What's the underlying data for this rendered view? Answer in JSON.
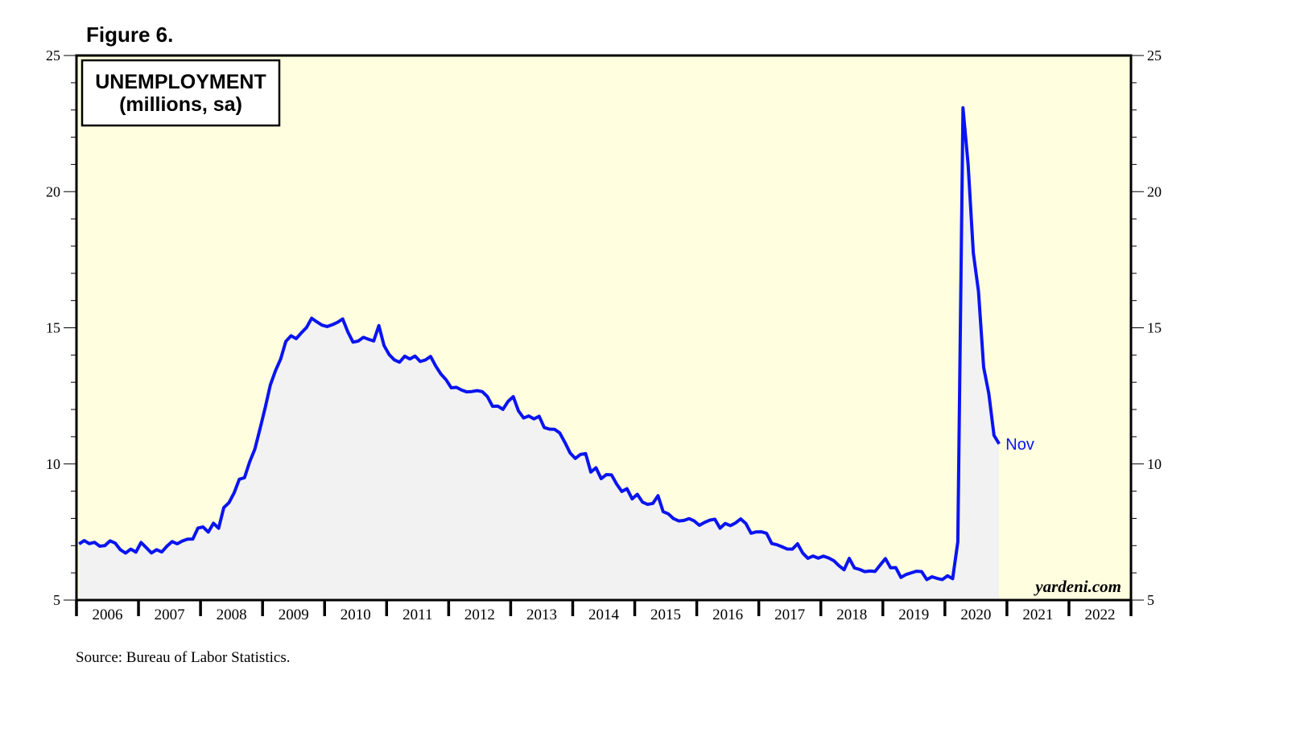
{
  "chart_data": {
    "type": "line",
    "figure_label": "Figure 6.",
    "title": "UNEMPLOYMENT",
    "subtitle": "(millions, sa)",
    "annotation": "Nov",
    "watermark": "yardeni.com",
    "source": "Source: Bureau of Labor Statistics.",
    "xlim": [
      2006,
      2023
    ],
    "xticks": [
      2006,
      2007,
      2008,
      2009,
      2010,
      2011,
      2012,
      2013,
      2014,
      2015,
      2016,
      2017,
      2018,
      2019,
      2020,
      2021,
      2022
    ],
    "ylim": [
      5,
      25
    ],
    "yticks": [
      5,
      10,
      15,
      20,
      25
    ],
    "y_minor_ticks": [
      6,
      7,
      8,
      9,
      11,
      12,
      13,
      14,
      16,
      17,
      18,
      19,
      21,
      22,
      23,
      24
    ],
    "background": "#ffffe0",
    "area_color": "#f2f2f2",
    "x": [
      "2006-01",
      "2006-02",
      "2006-03",
      "2006-04",
      "2006-05",
      "2006-06",
      "2006-07",
      "2006-08",
      "2006-09",
      "2006-10",
      "2006-11",
      "2006-12",
      "2007-01",
      "2007-02",
      "2007-03",
      "2007-04",
      "2007-05",
      "2007-06",
      "2007-07",
      "2007-08",
      "2007-09",
      "2007-10",
      "2007-11",
      "2007-12",
      "2008-01",
      "2008-02",
      "2008-03",
      "2008-04",
      "2008-05",
      "2008-06",
      "2008-07",
      "2008-08",
      "2008-09",
      "2008-10",
      "2008-11",
      "2008-12",
      "2009-01",
      "2009-02",
      "2009-03",
      "2009-04",
      "2009-05",
      "2009-06",
      "2009-07",
      "2009-08",
      "2009-09",
      "2009-10",
      "2009-11",
      "2009-12",
      "2010-01",
      "2010-02",
      "2010-03",
      "2010-04",
      "2010-05",
      "2010-06",
      "2010-07",
      "2010-08",
      "2010-09",
      "2010-10",
      "2010-11",
      "2010-12",
      "2011-01",
      "2011-02",
      "2011-03",
      "2011-04",
      "2011-05",
      "2011-06",
      "2011-07",
      "2011-08",
      "2011-09",
      "2011-10",
      "2011-11",
      "2011-12",
      "2012-01",
      "2012-02",
      "2012-03",
      "2012-04",
      "2012-05",
      "2012-06",
      "2012-07",
      "2012-08",
      "2012-09",
      "2012-10",
      "2012-11",
      "2012-12",
      "2013-01",
      "2013-02",
      "2013-03",
      "2013-04",
      "2013-05",
      "2013-06",
      "2013-07",
      "2013-08",
      "2013-09",
      "2013-10",
      "2013-11",
      "2013-12",
      "2014-01",
      "2014-02",
      "2014-03",
      "2014-04",
      "2014-05",
      "2014-06",
      "2014-07",
      "2014-08",
      "2014-09",
      "2014-10",
      "2014-11",
      "2014-12",
      "2015-01",
      "2015-02",
      "2015-03",
      "2015-04",
      "2015-05",
      "2015-06",
      "2015-07",
      "2015-08",
      "2015-09",
      "2015-10",
      "2015-11",
      "2015-12",
      "2016-01",
      "2016-02",
      "2016-03",
      "2016-04",
      "2016-05",
      "2016-06",
      "2016-07",
      "2016-08",
      "2016-09",
      "2016-10",
      "2016-11",
      "2016-12",
      "2017-01",
      "2017-02",
      "2017-03",
      "2017-04",
      "2017-05",
      "2017-06",
      "2017-07",
      "2017-08",
      "2017-09",
      "2017-10",
      "2017-11",
      "2017-12",
      "2018-01",
      "2018-02",
      "2018-03",
      "2018-04",
      "2018-05",
      "2018-06",
      "2018-07",
      "2018-08",
      "2018-09",
      "2018-10",
      "2018-11",
      "2018-12",
      "2019-01",
      "2019-02",
      "2019-03",
      "2019-04",
      "2019-05",
      "2019-06",
      "2019-07",
      "2019-08",
      "2019-09",
      "2019-10",
      "2019-11",
      "2019-12",
      "2020-01",
      "2020-02",
      "2020-03",
      "2020-04",
      "2020-05",
      "2020-06",
      "2020-07",
      "2020-08",
      "2020-09",
      "2020-10",
      "2020-11"
    ],
    "series": [
      {
        "name": "UNEMPLOYMENT",
        "color": "#0a14f0",
        "values": [
          7.064,
          7.184,
          7.072,
          7.12,
          6.98,
          7.001,
          7.175,
          7.091,
          6.847,
          6.727,
          6.872,
          6.762,
          7.116,
          6.927,
          6.731,
          6.85,
          6.766,
          6.979,
          7.149,
          7.067,
          7.17,
          7.237,
          7.24,
          7.645,
          7.685,
          7.497,
          7.822,
          7.637,
          8.395,
          8.575,
          8.937,
          9.438,
          9.494,
          10.074,
          10.538,
          11.286,
          12.058,
          12.898,
          13.426,
          13.853,
          14.499,
          14.707,
          14.601,
          14.814,
          15.009,
          15.352,
          15.219,
          15.098,
          15.046,
          15.113,
          15.202,
          15.325,
          14.849,
          14.474,
          14.512,
          14.648,
          14.579,
          14.516,
          15.081,
          14.348,
          14.013,
          13.82,
          13.737,
          13.957,
          13.855,
          13.962,
          13.763,
          13.818,
          13.948,
          13.594,
          13.302,
          13.093,
          12.797,
          12.813,
          12.713,
          12.646,
          12.66,
          12.692,
          12.656,
          12.471,
          12.115,
          12.124,
          12.005,
          12.298,
          12.471,
          11.95,
          11.689,
          11.76,
          11.654,
          11.751,
          11.335,
          11.279,
          11.27,
          11.136,
          10.787,
          10.404,
          10.202,
          10.349,
          10.38,
          9.702,
          9.859,
          9.46,
          9.608,
          9.599,
          9.262,
          8.99,
          9.09,
          8.717,
          8.885,
          8.599,
          8.515,
          8.55,
          8.834,
          8.247,
          8.167,
          7.992,
          7.907,
          7.925,
          7.992,
          7.907,
          7.747,
          7.852,
          7.935,
          7.97,
          7.64,
          7.813,
          7.735,
          7.833,
          7.981,
          7.811,
          7.455,
          7.504,
          7.509,
          7.452,
          7.077,
          7.033,
          6.957,
          6.875,
          6.871,
          7.068,
          6.727,
          6.534,
          6.618,
          6.54,
          6.614,
          6.547,
          6.448,
          6.264,
          6.115,
          6.532,
          6.181,
          6.126,
          6.045,
          6.068,
          6.054,
          6.294,
          6.523,
          6.184,
          6.191,
          5.833,
          5.94,
          6.001,
          6.06,
          6.045,
          5.753,
          5.855,
          5.797,
          5.753,
          5.892,
          5.787,
          7.14,
          23.078,
          20.985,
          17.75,
          16.338,
          13.55,
          12.58,
          11.049,
          10.736
        ]
      }
    ]
  }
}
